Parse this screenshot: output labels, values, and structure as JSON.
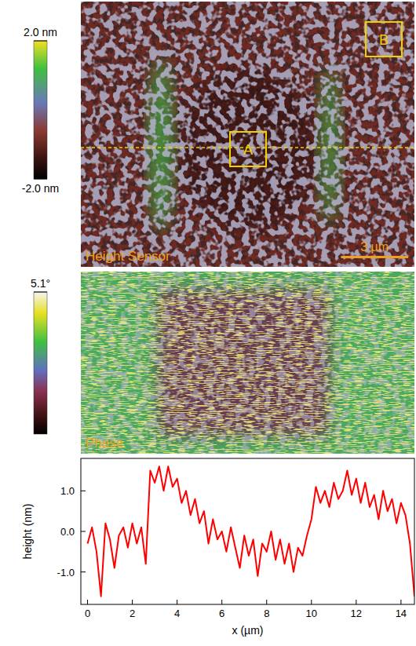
{
  "chart_data": [
    {
      "type": "image",
      "label": "Height Sensor",
      "colorbar_range": [
        -2.0,
        2.0
      ],
      "colorbar_ticks": [
        {
          "value": 2.0,
          "label": "2.0 nm"
        },
        {
          "value": -2.0,
          "label": "-2.0 nm"
        }
      ],
      "xlim": [
        -0.3,
        14.6
      ],
      "scale_bar": {
        "value": 3,
        "label": "3 µm"
      },
      "boxes": [
        "A",
        "B"
      ]
    },
    {
      "type": "image",
      "label": "Phase",
      "colorbar_range": [
        0,
        5.1
      ],
      "colorbar_ticks": [
        {
          "value": 5.1,
          "label": "5.1°"
        }
      ]
    },
    {
      "type": "line",
      "x_label": "x (µm)",
      "y_label": "height (nm)",
      "color": "#ff0000",
      "x": [
        0,
        0.2,
        0.4,
        0.6,
        0.8,
        1.0,
        1.2,
        1.4,
        1.6,
        1.8,
        2.0,
        2.2,
        2.4,
        2.6,
        2.8,
        3.0,
        3.2,
        3.4,
        3.6,
        3.8,
        4.0,
        4.2,
        4.4,
        4.6,
        4.8,
        5.0,
        5.2,
        5.4,
        5.6,
        5.8,
        6.0,
        6.2,
        6.4,
        6.6,
        6.8,
        7.0,
        7.2,
        7.4,
        7.6,
        7.8,
        8.0,
        8.2,
        8.4,
        8.6,
        8.8,
        9.0,
        9.2,
        9.4,
        9.6,
        9.8,
        10.0,
        10.2,
        10.4,
        10.6,
        10.8,
        11.0,
        11.2,
        11.4,
        11.6,
        11.8,
        12.0,
        12.2,
        12.4,
        12.6,
        12.8,
        13.0,
        13.2,
        13.4,
        13.6,
        13.8,
        14.0,
        14.2,
        14.4,
        14.6
      ],
      "values": [
        -0.3,
        0.1,
        -0.5,
        -1.6,
        0.2,
        -0.2,
        -0.9,
        -0.1,
        0.1,
        -0.4,
        0.2,
        -0.3,
        0.1,
        -0.8,
        1.5,
        1.2,
        1.6,
        1.0,
        1.6,
        1.1,
        1.3,
        0.7,
        1.0,
        0.4,
        0.8,
        0.2,
        0.5,
        -0.3,
        0.3,
        -0.2,
        0.0,
        -0.5,
        0.1,
        -0.4,
        -0.9,
        -0.1,
        -0.6,
        -0.2,
        -1.1,
        -0.3,
        -0.5,
        0.0,
        -0.7,
        -0.2,
        -0.8,
        -0.3,
        -1.0,
        -0.4,
        -0.6,
        -0.1,
        0.3,
        1.1,
        0.7,
        1.0,
        0.6,
        1.2,
        0.8,
        1.0,
        1.5,
        0.9,
        1.3,
        0.7,
        1.2,
        0.6,
        0.9,
        0.3,
        1.0,
        0.5,
        0.8,
        0.2,
        0.7,
        0.4,
        -0.3,
        -1.6
      ],
      "xlim": [
        -0.3,
        14.6
      ],
      "ylim": [
        -1.8,
        1.8
      ],
      "xticks": [
        0,
        2,
        4,
        6,
        8,
        10,
        12,
        14
      ],
      "yticks": [
        {
          "value": -1,
          "label": "-1.0"
        },
        {
          "value": 0,
          "label": "0.0"
        },
        {
          "value": 1,
          "label": "1.0"
        }
      ]
    }
  ]
}
